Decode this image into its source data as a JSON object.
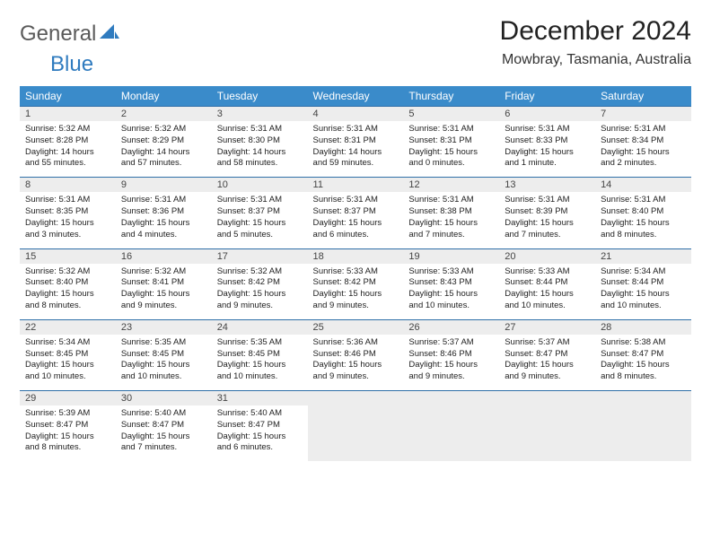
{
  "logo": {
    "text1": "General",
    "text2": "Blue"
  },
  "title": "December 2024",
  "location": "Mowbray, Tasmania, Australia",
  "colors": {
    "header_bg": "#3a8bca",
    "header_text": "#ffffff",
    "daynum_bg": "#ededed",
    "daynum_border": "#2f6fa8",
    "body_text": "#222222",
    "logo_gray": "#5a5a5a",
    "logo_blue": "#2f7bbf"
  },
  "typography": {
    "title_fontsize": 30,
    "location_fontsize": 16,
    "weekday_fontsize": 12,
    "daynum_fontsize": 11,
    "cell_fontsize": 9.5
  },
  "weekdays": [
    "Sunday",
    "Monday",
    "Tuesday",
    "Wednesday",
    "Thursday",
    "Friday",
    "Saturday"
  ],
  "weeks": [
    [
      {
        "n": "1",
        "sr": "5:32 AM",
        "ss": "8:28 PM",
        "dl": "14 hours and 55 minutes."
      },
      {
        "n": "2",
        "sr": "5:32 AM",
        "ss": "8:29 PM",
        "dl": "14 hours and 57 minutes."
      },
      {
        "n": "3",
        "sr": "5:31 AM",
        "ss": "8:30 PM",
        "dl": "14 hours and 58 minutes."
      },
      {
        "n": "4",
        "sr": "5:31 AM",
        "ss": "8:31 PM",
        "dl": "14 hours and 59 minutes."
      },
      {
        "n": "5",
        "sr": "5:31 AM",
        "ss": "8:31 PM",
        "dl": "15 hours and 0 minutes."
      },
      {
        "n": "6",
        "sr": "5:31 AM",
        "ss": "8:33 PM",
        "dl": "15 hours and 1 minute."
      },
      {
        "n": "7",
        "sr": "5:31 AM",
        "ss": "8:34 PM",
        "dl": "15 hours and 2 minutes."
      }
    ],
    [
      {
        "n": "8",
        "sr": "5:31 AM",
        "ss": "8:35 PM",
        "dl": "15 hours and 3 minutes."
      },
      {
        "n": "9",
        "sr": "5:31 AM",
        "ss": "8:36 PM",
        "dl": "15 hours and 4 minutes."
      },
      {
        "n": "10",
        "sr": "5:31 AM",
        "ss": "8:37 PM",
        "dl": "15 hours and 5 minutes."
      },
      {
        "n": "11",
        "sr": "5:31 AM",
        "ss": "8:37 PM",
        "dl": "15 hours and 6 minutes."
      },
      {
        "n": "12",
        "sr": "5:31 AM",
        "ss": "8:38 PM",
        "dl": "15 hours and 7 minutes."
      },
      {
        "n": "13",
        "sr": "5:31 AM",
        "ss": "8:39 PM",
        "dl": "15 hours and 7 minutes."
      },
      {
        "n": "14",
        "sr": "5:31 AM",
        "ss": "8:40 PM",
        "dl": "15 hours and 8 minutes."
      }
    ],
    [
      {
        "n": "15",
        "sr": "5:32 AM",
        "ss": "8:40 PM",
        "dl": "15 hours and 8 minutes."
      },
      {
        "n": "16",
        "sr": "5:32 AM",
        "ss": "8:41 PM",
        "dl": "15 hours and 9 minutes."
      },
      {
        "n": "17",
        "sr": "5:32 AM",
        "ss": "8:42 PM",
        "dl": "15 hours and 9 minutes."
      },
      {
        "n": "18",
        "sr": "5:33 AM",
        "ss": "8:42 PM",
        "dl": "15 hours and 9 minutes."
      },
      {
        "n": "19",
        "sr": "5:33 AM",
        "ss": "8:43 PM",
        "dl": "15 hours and 10 minutes."
      },
      {
        "n": "20",
        "sr": "5:33 AM",
        "ss": "8:44 PM",
        "dl": "15 hours and 10 minutes."
      },
      {
        "n": "21",
        "sr": "5:34 AM",
        "ss": "8:44 PM",
        "dl": "15 hours and 10 minutes."
      }
    ],
    [
      {
        "n": "22",
        "sr": "5:34 AM",
        "ss": "8:45 PM",
        "dl": "15 hours and 10 minutes."
      },
      {
        "n": "23",
        "sr": "5:35 AM",
        "ss": "8:45 PM",
        "dl": "15 hours and 10 minutes."
      },
      {
        "n": "24",
        "sr": "5:35 AM",
        "ss": "8:45 PM",
        "dl": "15 hours and 10 minutes."
      },
      {
        "n": "25",
        "sr": "5:36 AM",
        "ss": "8:46 PM",
        "dl": "15 hours and 9 minutes."
      },
      {
        "n": "26",
        "sr": "5:37 AM",
        "ss": "8:46 PM",
        "dl": "15 hours and 9 minutes."
      },
      {
        "n": "27",
        "sr": "5:37 AM",
        "ss": "8:47 PM",
        "dl": "15 hours and 9 minutes."
      },
      {
        "n": "28",
        "sr": "5:38 AM",
        "ss": "8:47 PM",
        "dl": "15 hours and 8 minutes."
      }
    ],
    [
      {
        "n": "29",
        "sr": "5:39 AM",
        "ss": "8:47 PM",
        "dl": "15 hours and 8 minutes."
      },
      {
        "n": "30",
        "sr": "5:40 AM",
        "ss": "8:47 PM",
        "dl": "15 hours and 7 minutes."
      },
      {
        "n": "31",
        "sr": "5:40 AM",
        "ss": "8:47 PM",
        "dl": "15 hours and 6 minutes."
      },
      null,
      null,
      null,
      null
    ]
  ],
  "labels": {
    "sunrise": "Sunrise:",
    "sunset": "Sunset:",
    "daylight": "Daylight:"
  }
}
